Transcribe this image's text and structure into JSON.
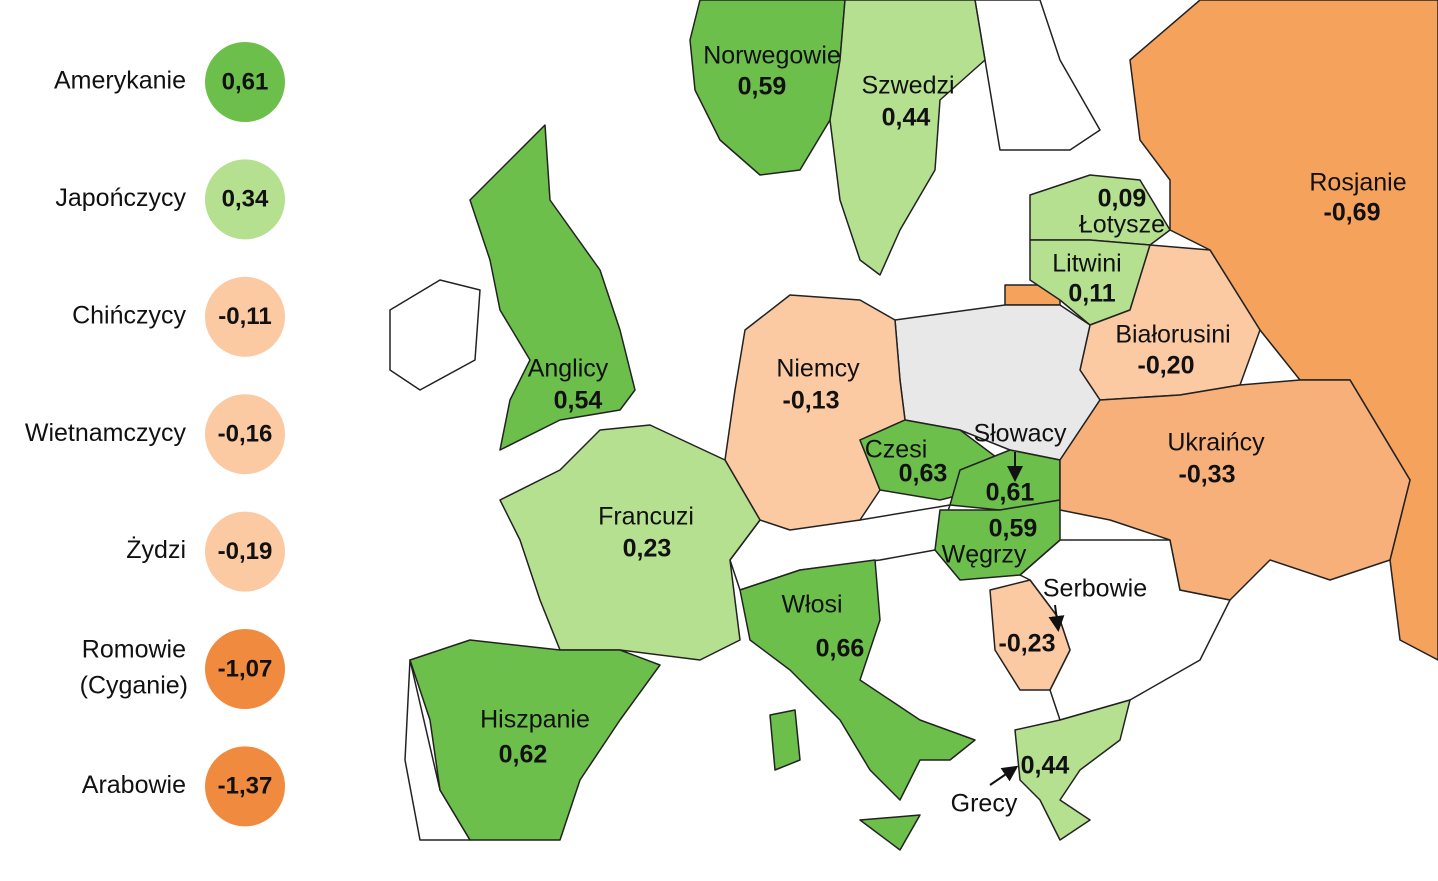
{
  "legend": [
    {
      "name": "Amerykanie",
      "value": "0,61",
      "color": "#6dbf4b"
    },
    {
      "name": "Japończycy",
      "value": "0,34",
      "color": "#b5e08f"
    },
    {
      "name": "Chińczycy",
      "value": "-0,11",
      "color": "#fbc9a2"
    },
    {
      "name": "Wietnamczycy",
      "value": "-0,16",
      "color": "#fbc9a2"
    },
    {
      "name": "Żydzi",
      "value": "-0,19",
      "color": "#fbc9a2"
    },
    {
      "name": "Romowie",
      "note": "(Cyganie)",
      "value": "-1,07",
      "color": "#f08a3e"
    },
    {
      "name": "Arabowie",
      "value": "-1,37",
      "color": "#f08a3e"
    }
  ],
  "regions": [
    {
      "name": "Norwegowie",
      "value": "0,59",
      "color": "#6dbf4b"
    },
    {
      "name": "Szwedzi",
      "value": "0,44",
      "color": "#b5e08f"
    },
    {
      "name": "Rosjanie",
      "value": "-0,69",
      "color": "#f5a25c"
    },
    {
      "name": "Łotysze",
      "value": "0,09",
      "color": "#b5e08f"
    },
    {
      "name": "Litwini",
      "value": "0,11",
      "color": "#b5e08f"
    },
    {
      "name": "Białorusini",
      "value": "-0,20",
      "color": "#fbc9a2"
    },
    {
      "name": "Anglicy",
      "value": "0,54",
      "color": "#6dbf4b"
    },
    {
      "name": "Niemcy",
      "value": "-0,13",
      "color": "#fbc9a2"
    },
    {
      "name": "Czesi",
      "value": "0,63",
      "color": "#6dbf4b"
    },
    {
      "name": "Słowacy",
      "value": "0,61",
      "color": "#6dbf4b"
    },
    {
      "name": "Węgrzy",
      "value": "0,59",
      "color": "#6dbf4b"
    },
    {
      "name": "Ukraińcy",
      "value": "-0,33",
      "color": "#f7b07a"
    },
    {
      "name": "Francuzi",
      "value": "0,23",
      "color": "#b5e08f"
    },
    {
      "name": "Włosi",
      "value": "0,66",
      "color": "#6dbf4b"
    },
    {
      "name": "Serbowie",
      "value": "-0,23",
      "color": "#fbc9a2"
    },
    {
      "name": "Hiszpanie",
      "value": "0,62",
      "color": "#6dbf4b"
    },
    {
      "name": "Grecy",
      "value": "0,44",
      "color": "#b5e08f"
    }
  ]
}
